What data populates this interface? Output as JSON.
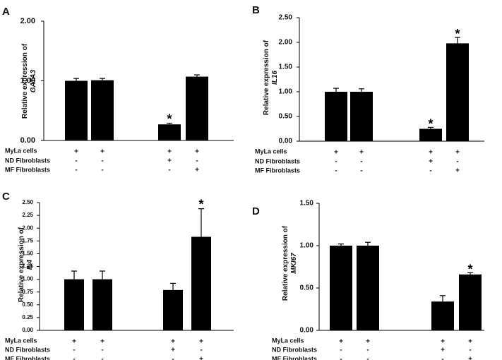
{
  "figure": {
    "legend": {
      "row_labels": [
        "MyLa cells",
        "ND Fibroblasts",
        "MF Fibroblasts"
      ]
    }
  },
  "chart_data": [
    {
      "panel": "A",
      "type": "bar",
      "ylabel_prefix": "Relative expression of",
      "gene": "GATA3",
      "ylim": [
        0,
        2.0
      ],
      "yticks": [
        0,
        1.0,
        2.0
      ],
      "ytick_labels": [
        "0.00",
        "1.00",
        "2.00"
      ],
      "groups": [
        {
          "values": [
            1.0,
            1.01
          ],
          "errors": [
            0.04,
            0.03
          ],
          "stars": [
            false,
            false
          ],
          "signs": [
            [
              "+",
              "-",
              "-"
            ],
            [
              "+",
              "-",
              "-"
            ]
          ]
        },
        {
          "values": [
            0.27,
            1.07
          ],
          "errors": [
            0.02,
            0.03
          ],
          "stars": [
            true,
            false
          ],
          "signs": [
            [
              "+",
              "+",
              "-"
            ],
            [
              "+",
              "-",
              "+"
            ]
          ]
        }
      ]
    },
    {
      "panel": "B",
      "type": "bar",
      "ylabel_prefix": "Relative expression of",
      "gene": "IL16",
      "ylim": [
        0,
        2.5
      ],
      "yticks": [
        0,
        0.5,
        1.0,
        1.5,
        2.0,
        2.5
      ],
      "ytick_labels": [
        "0.00",
        "0.50",
        "1.00",
        "1.50",
        "2.00",
        "2.50"
      ],
      "groups": [
        {
          "values": [
            1.0,
            1.0
          ],
          "errors": [
            0.07,
            0.06
          ],
          "stars": [
            false,
            false
          ],
          "signs": [
            [
              "+",
              "-",
              "-"
            ],
            [
              "+",
              "-",
              "-"
            ]
          ]
        },
        {
          "values": [
            0.25,
            1.98
          ],
          "errors": [
            0.03,
            0.12
          ],
          "stars": [
            true,
            true
          ],
          "signs": [
            [
              "+",
              "+",
              "-"
            ],
            [
              "+",
              "-",
              "+"
            ]
          ]
        }
      ]
    },
    {
      "panel": "C",
      "type": "bar",
      "ylabel_prefix": "Relative expression of",
      "gene": "IL4",
      "ylim": [
        0,
        2.5
      ],
      "yticks": [
        0,
        0.25,
        0.5,
        0.75,
        1.0,
        1.25,
        1.5,
        1.75,
        2.0,
        2.25,
        2.5
      ],
      "ytick_labels": [
        "0.00",
        "0.25",
        "0.50",
        "0.75",
        "1.00",
        "1.25",
        "1.50",
        "1.75",
        "2.00",
        "2.25",
        "2.50"
      ],
      "groups": [
        {
          "values": [
            1.0,
            1.0
          ],
          "errors": [
            0.16,
            0.16
          ],
          "stars": [
            false,
            false
          ],
          "signs": [
            [
              "+",
              "-",
              "-"
            ],
            [
              "+",
              "-",
              "-"
            ]
          ]
        },
        {
          "values": [
            0.79,
            1.83
          ],
          "errors": [
            0.13,
            0.55
          ],
          "stars": [
            false,
            true
          ],
          "signs": [
            [
              "+",
              "+",
              "-"
            ],
            [
              "+",
              "-",
              "+"
            ]
          ]
        }
      ]
    },
    {
      "panel": "D",
      "type": "bar",
      "ylabel_prefix": "Relative expression of",
      "gene": "MKI67",
      "ylim": [
        0,
        1.5
      ],
      "yticks": [
        0,
        0.5,
        1.0,
        1.5
      ],
      "ytick_labels": [
        "0.00",
        "0.50",
        "1.00",
        "1.50"
      ],
      "groups": [
        {
          "values": [
            1.0,
            1.0
          ],
          "errors": [
            0.02,
            0.04
          ],
          "stars": [
            false,
            false
          ],
          "signs": [
            [
              "+",
              "-",
              "-"
            ],
            [
              "+",
              "-",
              "-"
            ]
          ]
        },
        {
          "values": [
            0.34,
            0.66
          ],
          "errors": [
            0.07,
            0.02
          ],
          "stars": [
            false,
            true
          ],
          "signs": [
            [
              "+",
              "+",
              "-"
            ],
            [
              "+",
              "-",
              "+"
            ]
          ]
        }
      ]
    }
  ]
}
